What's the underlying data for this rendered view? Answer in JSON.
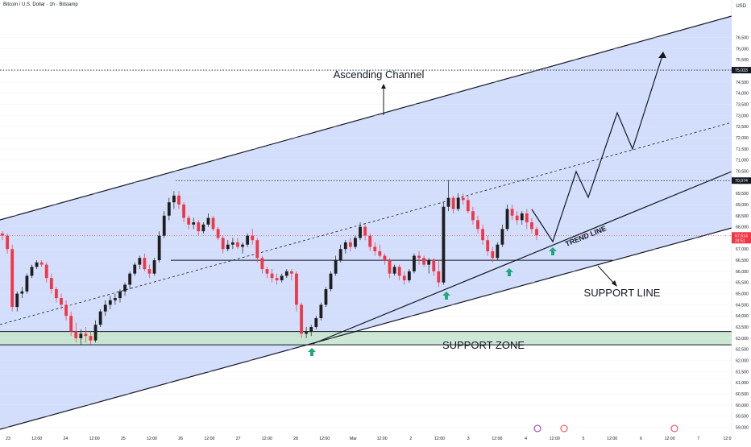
{
  "header": {
    "symbol_title": "Bitcoin / U.S. Dollar · 1h · Bitstamp",
    "currency": "USD"
  },
  "colors": {
    "channel_fill": "#cad8fb",
    "support_zone_fill": "#c7e6cf",
    "candle_up": "#1e1e1e",
    "candle_down": "#f23645",
    "arrow": "#1ea97c",
    "line": "#131722"
  },
  "chart_data": {
    "type": "candlestick",
    "price_axis": {
      "min": 59000,
      "max": 76500,
      "ticks": [
        "59,000",
        "59,500",
        "60,000",
        "60,500",
        "61,000",
        "61,500",
        "62,000",
        "62,500",
        "63,000",
        "63,500",
        "64,000",
        "64,500",
        "65,000",
        "65,500",
        "66,000",
        "66,500",
        "67,000",
        "67,500",
        "68,000",
        "68,500",
        "69,000",
        "69,500",
        "70,000",
        "70,500",
        "71,000",
        "71,500",
        "72,000",
        "72,500",
        "73,000",
        "73,500",
        "74,000",
        "74,500",
        "75,000",
        "75,500",
        "76,000",
        "76,500"
      ]
    },
    "time_axis": {
      "labels": [
        "23",
        "12:00",
        "24",
        "12:00",
        "25",
        "12:00",
        "26",
        "12:00",
        "27",
        "12:00",
        "28",
        "12:00",
        "Mar",
        "12:00",
        "2",
        "12:00",
        "3",
        "12:00",
        "4",
        "12:00",
        "5",
        "12:00",
        "6",
        "12:00",
        "7",
        "12:0"
      ]
    },
    "price_tags": [
      {
        "value": "75,033",
        "style": "dark"
      },
      {
        "value": "70,074",
        "style": "dark"
      },
      {
        "value": "67,614",
        "sub": "24:51",
        "style": "red"
      }
    ],
    "annotations": {
      "ascending_channel": "Ascending Channel",
      "trend_line": "TREND LINE",
      "support_line": "SUPPORT LINE",
      "support_zone": "SUPPORT ZONE"
    },
    "levels": {
      "target": 75033,
      "resistance": 70074,
      "support_line": 66500,
      "support_zone_top": 63300,
      "support_zone_bottom": 62700,
      "last_price": 67614
    },
    "candles": [
      [
        67700,
        67800,
        67400,
        67600
      ],
      [
        67600,
        67700,
        66800,
        67000
      ],
      [
        67000,
        67200,
        64200,
        64400
      ],
      [
        64400,
        65100,
        64200,
        65000
      ],
      [
        65000,
        65300,
        64800,
        65100
      ],
      [
        65100,
        65900,
        65000,
        65800
      ],
      [
        65800,
        66300,
        65700,
        66200
      ],
      [
        66200,
        66500,
        66100,
        66400
      ],
      [
        66400,
        66500,
        66200,
        66300
      ],
      [
        66300,
        66400,
        65500,
        65700
      ],
      [
        65700,
        65900,
        65000,
        65200
      ],
      [
        65200,
        65300,
        64600,
        64800
      ],
      [
        64800,
        65000,
        64300,
        64500
      ],
      [
        64500,
        64700,
        63800,
        64000
      ],
      [
        64000,
        64200,
        63100,
        63300
      ],
      [
        63300,
        63700,
        62800,
        63000
      ],
      [
        63000,
        63400,
        62700,
        63200
      ],
      [
        63200,
        63500,
        62800,
        63100
      ],
      [
        63100,
        63300,
        62700,
        62900
      ],
      [
        62900,
        63800,
        62800,
        63600
      ],
      [
        63600,
        64300,
        63500,
        64200
      ],
      [
        64200,
        64700,
        64000,
        64500
      ],
      [
        64500,
        64900,
        64300,
        64700
      ],
      [
        64700,
        65000,
        64500,
        64800
      ],
      [
        64800,
        65200,
        64600,
        65100
      ],
      [
        65100,
        65500,
        64900,
        65400
      ],
      [
        65400,
        66000,
        65200,
        65900
      ],
      [
        65900,
        66400,
        65800,
        66300
      ],
      [
        66300,
        66700,
        66100,
        66600
      ],
      [
        66600,
        66800,
        66000,
        66100
      ],
      [
        66100,
        66300,
        65700,
        65900
      ],
      [
        65900,
        66600,
        65800,
        66500
      ],
      [
        66500,
        67800,
        66400,
        67600
      ],
      [
        67600,
        68700,
        67500,
        68500
      ],
      [
        68500,
        69300,
        68300,
        69100
      ],
      [
        69100,
        69600,
        68800,
        69400
      ],
      [
        69400,
        69600,
        68800,
        69000
      ],
      [
        69000,
        69100,
        68200,
        68400
      ],
      [
        68400,
        68500,
        67900,
        68100
      ],
      [
        68100,
        68400,
        67900,
        68200
      ],
      [
        68200,
        68300,
        67600,
        67800
      ],
      [
        67800,
        68200,
        67700,
        68100
      ],
      [
        68100,
        68600,
        68000,
        68400
      ],
      [
        68400,
        68500,
        67800,
        67900
      ],
      [
        67900,
        68000,
        67400,
        67500
      ],
      [
        67500,
        67600,
        66800,
        67000
      ],
      [
        67000,
        67400,
        66900,
        67200
      ],
      [
        67200,
        67500,
        67000,
        67300
      ],
      [
        67300,
        67500,
        67000,
        67100
      ],
      [
        67100,
        67300,
        66800,
        67200
      ],
      [
        67200,
        67700,
        67100,
        67600
      ],
      [
        67600,
        67900,
        67200,
        67400
      ],
      [
        67400,
        67500,
        66400,
        66600
      ],
      [
        66600,
        66700,
        65900,
        66100
      ],
      [
        66100,
        66200,
        65700,
        65900
      ],
      [
        65900,
        66100,
        65500,
        65700
      ],
      [
        65700,
        65900,
        65400,
        65600
      ],
      [
        65600,
        65900,
        65500,
        65800
      ],
      [
        65800,
        66100,
        65700,
        66000
      ],
      [
        66000,
        66100,
        65600,
        65900
      ],
      [
        65900,
        66000,
        64200,
        64500
      ],
      [
        64500,
        64600,
        63000,
        63200
      ],
      [
        63200,
        63500,
        63000,
        63300
      ],
      [
        63300,
        63600,
        63100,
        63500
      ],
      [
        63500,
        64000,
        63400,
        63900
      ],
      [
        63900,
        64600,
        63800,
        64500
      ],
      [
        64500,
        65300,
        64400,
        65200
      ],
      [
        65200,
        66000,
        65100,
        65900
      ],
      [
        65900,
        66700,
        65800,
        66500
      ],
      [
        66500,
        67200,
        66400,
        67000
      ],
      [
        67000,
        67400,
        66800,
        67300
      ],
      [
        67300,
        67500,
        66900,
        67100
      ],
      [
        67100,
        67600,
        67000,
        67500
      ],
      [
        67500,
        68200,
        67400,
        68000
      ],
      [
        68000,
        68100,
        67400,
        67600
      ],
      [
        67600,
        67700,
        66900,
        67100
      ],
      [
        67100,
        67300,
        66700,
        66900
      ],
      [
        66900,
        67200,
        66600,
        66700
      ],
      [
        66700,
        66800,
        66300,
        66500
      ],
      [
        66500,
        66600,
        65700,
        65900
      ],
      [
        65900,
        66300,
        65800,
        66200
      ],
      [
        66200,
        66300,
        65600,
        65800
      ],
      [
        65800,
        66000,
        65400,
        65600
      ],
      [
        65600,
        66100,
        65500,
        66000
      ],
      [
        66000,
        66800,
        65900,
        66700
      ],
      [
        66700,
        66900,
        66300,
        66600
      ],
      [
        66600,
        66700,
        66200,
        66300
      ],
      [
        66300,
        66600,
        65900,
        66500
      ],
      [
        66500,
        66600,
        65800,
        66000
      ],
      [
        66000,
        66500,
        65300,
        65500
      ],
      [
        65500,
        69100,
        65400,
        68900
      ],
      [
        68900,
        70100,
        68700,
        69300
      ],
      [
        69300,
        69400,
        68600,
        68800
      ],
      [
        68800,
        69500,
        68700,
        69300
      ],
      [
        69300,
        69500,
        69000,
        69200
      ],
      [
        69200,
        69400,
        68600,
        68700
      ],
      [
        68700,
        68900,
        68100,
        68300
      ],
      [
        68300,
        68500,
        67700,
        67900
      ],
      [
        67900,
        68100,
        67200,
        67400
      ],
      [
        67400,
        67600,
        66700,
        66900
      ],
      [
        66900,
        67100,
        66400,
        66600
      ],
      [
        66600,
        67300,
        66500,
        67200
      ],
      [
        67200,
        68100,
        67100,
        67900
      ],
      [
        67900,
        69000,
        67800,
        68800
      ],
      [
        68800,
        69000,
        68300,
        68500
      ],
      [
        68500,
        68700,
        68100,
        68300
      ],
      [
        68300,
        68700,
        68100,
        68600
      ],
      [
        68600,
        68800,
        67900,
        68200
      ],
      [
        68200,
        68400,
        67700,
        67900
      ],
      [
        67900,
        68000,
        67400,
        67614
      ]
    ]
  }
}
